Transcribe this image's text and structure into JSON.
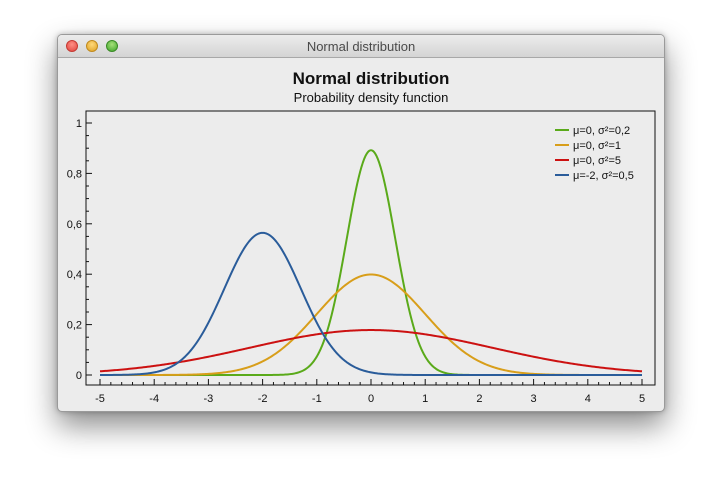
{
  "window": {
    "title": "Normal distribution"
  },
  "chart_data": {
    "type": "line",
    "title": "Normal distribution",
    "subtitle": "Probability density function",
    "xlabel": "",
    "ylabel": "",
    "xlim": [
      -5,
      5
    ],
    "ylim": [
      -0.05,
      1.05
    ],
    "x_ticks": [
      "-5",
      "-4",
      "-3",
      "-2",
      "-1",
      "0",
      "1",
      "2",
      "3",
      "4",
      "5"
    ],
    "y_ticks": [
      "0",
      "0,2",
      "0,4",
      "0,6",
      "0,8",
      "1"
    ],
    "legend_position": "top-right",
    "grid": false,
    "series": [
      {
        "name": "μ=0, σ²=0,2",
        "mu": 0,
        "variance": 0.2,
        "color": "#5aaa1a",
        "x": [
          -5,
          -4.5,
          -4,
          -3.5,
          -3,
          -2.5,
          -2,
          -1.5,
          -1,
          -0.75,
          -0.5,
          -0.25,
          0,
          0.25,
          0.5,
          0.75,
          1,
          1.5,
          2,
          2.5,
          3,
          3.5,
          4,
          4.5,
          5
        ],
        "values": [
          0,
          0,
          0,
          0,
          0,
          0,
          0,
          0.0033,
          0.073,
          0.219,
          0.475,
          0.764,
          0.892,
          0.764,
          0.475,
          0.219,
          0.073,
          0.0033,
          0,
          0,
          0,
          0,
          0,
          0,
          0
        ]
      },
      {
        "name": "μ=0, σ²=1",
        "mu": 0,
        "variance": 1,
        "color": "#d89e1a",
        "x": [
          -5,
          -4.5,
          -4,
          -3.5,
          -3,
          -2.5,
          -2,
          -1.5,
          -1,
          -0.75,
          -0.5,
          -0.25,
          0,
          0.25,
          0.5,
          0.75,
          1,
          1.5,
          2,
          2.5,
          3,
          3.5,
          4,
          4.5,
          5
        ],
        "values": [
          0,
          0,
          0.0001,
          0.0009,
          0.0044,
          0.0175,
          0.054,
          0.1295,
          0.242,
          0.301,
          0.352,
          0.387,
          0.399,
          0.387,
          0.352,
          0.301,
          0.242,
          0.1295,
          0.054,
          0.0175,
          0.0044,
          0.0009,
          0.0001,
          0,
          0
        ]
      },
      {
        "name": "μ=0, σ²=5",
        "mu": 0,
        "variance": 5,
        "color": "#cc1111",
        "x": [
          -5,
          -4.5,
          -4,
          -3.5,
          -3,
          -2.5,
          -2,
          -1.5,
          -1,
          -0.75,
          -0.5,
          -0.25,
          0,
          0.25,
          0.5,
          0.75,
          1,
          1.5,
          2,
          2.5,
          3,
          3.5,
          4,
          4.5,
          5
        ],
        "values": [
          0.0146,
          0.0235,
          0.036,
          0.0525,
          0.0729,
          0.0961,
          0.12,
          0.1423,
          0.1601,
          0.1679,
          0.1739,
          0.1771,
          0.1784,
          0.1771,
          0.1739,
          0.1679,
          0.1601,
          0.1423,
          0.12,
          0.0961,
          0.0729,
          0.0525,
          0.036,
          0.0235,
          0.0146
        ]
      },
      {
        "name": "μ=-2, σ²=0,5",
        "mu": -2,
        "variance": 0.5,
        "color": "#2a5c9a",
        "x": [
          -5,
          -4.5,
          -4,
          -3.5,
          -3,
          -2.5,
          -2,
          -1.5,
          -1,
          -0.75,
          -0.5,
          -0.25,
          0,
          0.25,
          0.5,
          0.75,
          1,
          1.5,
          2,
          2.5,
          3,
          3.5,
          4,
          4.5,
          5
        ],
        "values": [
          0,
          0.0011,
          0.0103,
          0.0595,
          0.2076,
          0.4394,
          0.5642,
          0.4394,
          0.2076,
          0.1184,
          0.0595,
          0.0263,
          0.0103,
          0.0036,
          0.0011,
          0.0003,
          0.0001,
          0,
          0,
          0,
          0,
          0,
          0,
          0,
          0
        ]
      }
    ]
  }
}
